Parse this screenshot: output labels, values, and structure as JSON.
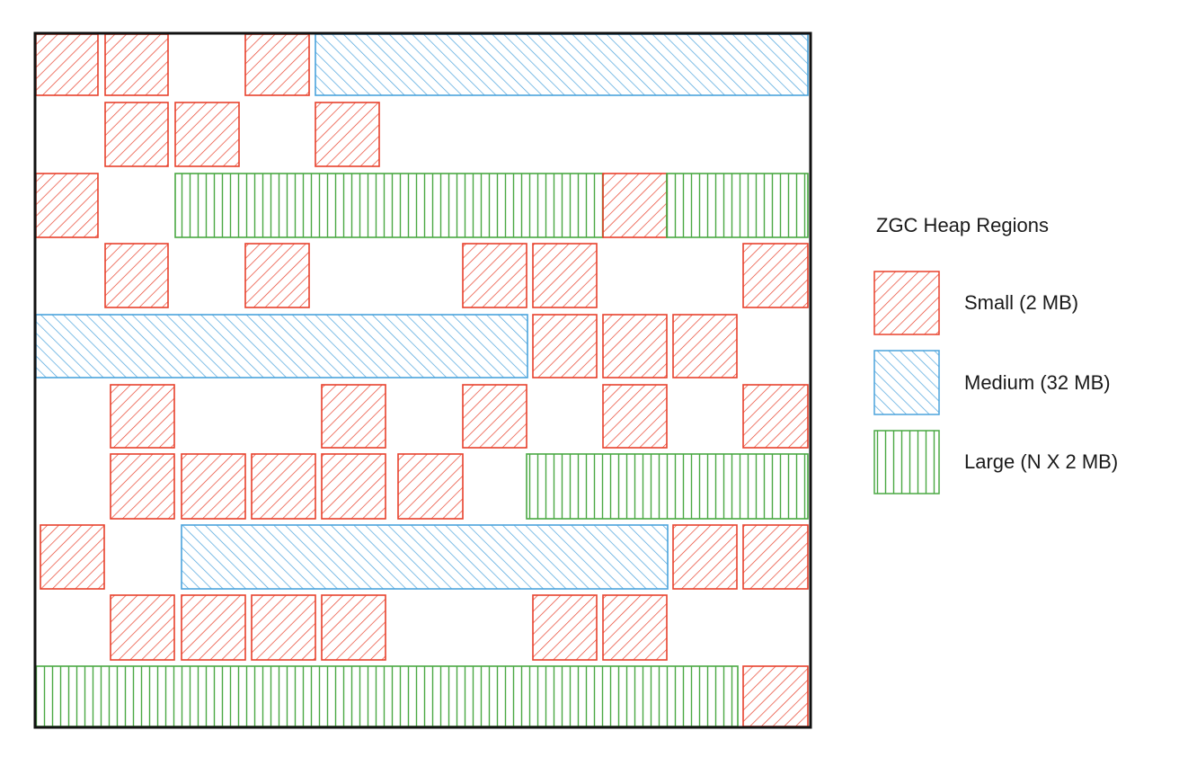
{
  "legend": {
    "title": "ZGC Heap Regions",
    "items": [
      {
        "type": "small",
        "label": "Small (2 MB)"
      },
      {
        "type": "medium",
        "label": "Medium (32 MB)"
      },
      {
        "type": "large",
        "label": "Large (N X 2 MB)"
      }
    ]
  },
  "colors": {
    "small": "#e8412c",
    "medium": "#4ba3dc",
    "large": "#4aa843",
    "frame": "#111111"
  }
}
